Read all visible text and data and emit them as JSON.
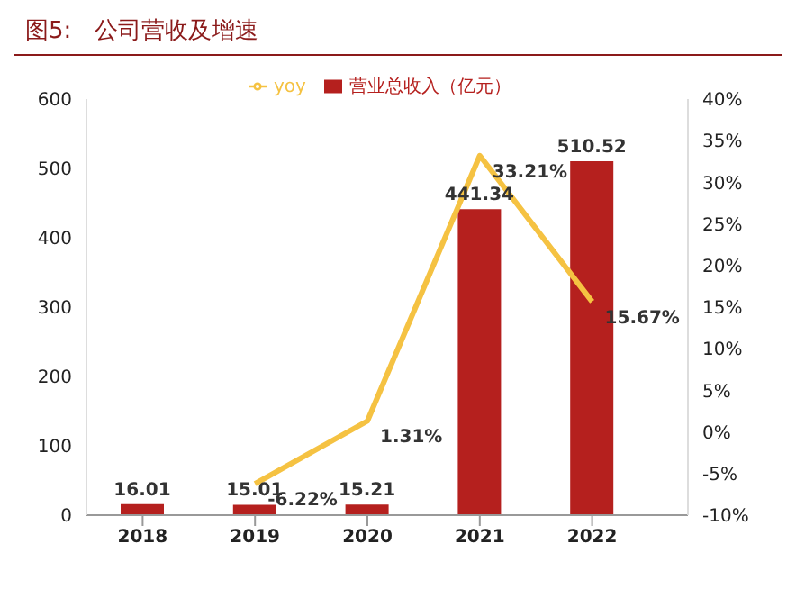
{
  "chart_data": {
    "type": "bar",
    "title": "图5:　公司营收及增速",
    "categories": [
      "2018",
      "2019",
      "2020",
      "2021",
      "2022"
    ],
    "series": [
      {
        "name": "营业总收入（亿元）",
        "color": "#b5201e",
        "values": [
          16.01,
          15.01,
          15.21,
          441.34,
          510.52
        ],
        "value_labels": [
          "16.01",
          "15.01",
          "15.21",
          "441.34",
          "510.52"
        ]
      },
      {
        "name": "yoy",
        "type": "line",
        "axis": "y2",
        "color": "#f5c242",
        "values": [
          null,
          -6.22,
          1.31,
          33.21,
          15.67
        ],
        "value_labels": [
          null,
          "-6.22%",
          "1.31%",
          "33.21%",
          "15.67%"
        ]
      }
    ],
    "ylim": [
      0,
      600
    ],
    "yticks": [
      0,
      100,
      200,
      300,
      400,
      500,
      600
    ],
    "y2lim": [
      -10,
      40
    ],
    "y2ticks": [
      {
        "value": -10,
        "label": "-10%"
      },
      {
        "value": -5,
        "label": "-5%"
      },
      {
        "value": 0,
        "label": "0%"
      },
      {
        "value": 5,
        "label": "5%"
      },
      {
        "value": 10,
        "label": "10%"
      },
      {
        "value": 15,
        "label": "15%"
      },
      {
        "value": 20,
        "label": "20%"
      },
      {
        "value": 25,
        "label": "25%"
      },
      {
        "value": 30,
        "label": "30%"
      },
      {
        "value": 35,
        "label": "35%"
      },
      {
        "value": 40,
        "label": "40%"
      }
    ],
    "legend": "top",
    "grid": false,
    "marker": "none",
    "line_style": "solid"
  }
}
